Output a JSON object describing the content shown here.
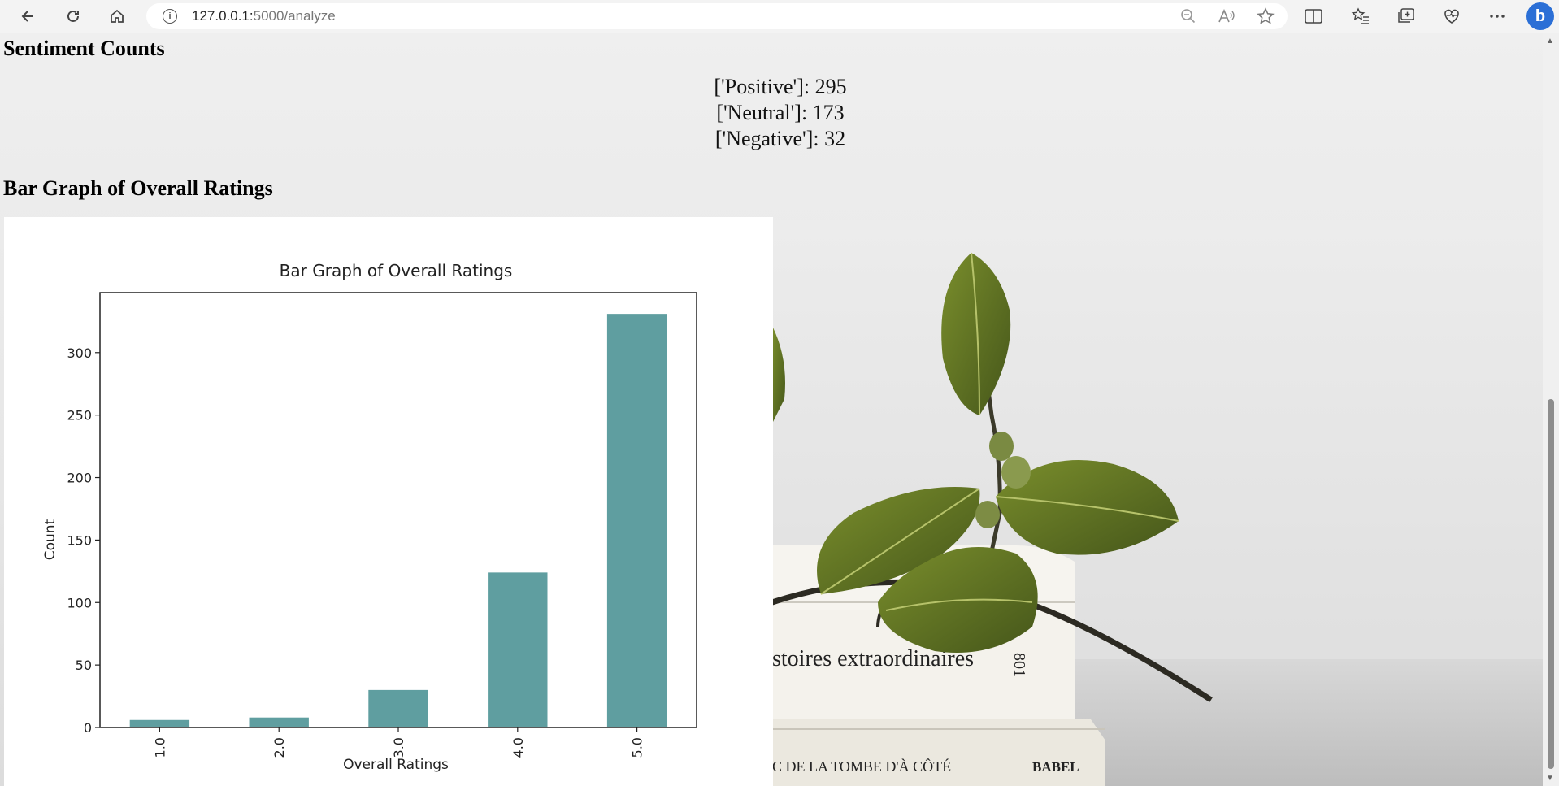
{
  "browser": {
    "url_host": "127.0.0.1:",
    "url_path": "5000/analyze"
  },
  "page": {
    "sentiment_heading": "Sentiment Counts",
    "sentiment_counts": [
      "['Positive']: 295",
      "['Neutral']: 173",
      "['Negative']: 32"
    ],
    "graph_heading": "Bar Graph of Overall Ratings"
  },
  "colors": {
    "bar": "#5f9ea0",
    "profile": "#2b6fd6"
  },
  "icons": [
    "back-arrow-icon",
    "refresh-icon",
    "home-icon",
    "info-icon",
    "zoom-out-icon",
    "read-aloud-icon",
    "favorite-star-icon",
    "split-screen-icon",
    "favorites-icon",
    "collections-icon",
    "browser-essentials-icon",
    "more-icon",
    "bing-copilot-icon"
  ],
  "chart_data": {
    "type": "bar",
    "title": "Bar Graph of Overall Ratings",
    "xlabel": "Overall Ratings",
    "ylabel": "Count",
    "categories": [
      "1.0",
      "2.0",
      "3.0",
      "4.0",
      "5.0"
    ],
    "values": [
      6,
      8,
      30,
      124,
      331
    ],
    "yticks": [
      0,
      50,
      100,
      150,
      200,
      250,
      300
    ],
    "ylim": [
      0,
      348
    ],
    "grid": false,
    "legend": "none"
  }
}
